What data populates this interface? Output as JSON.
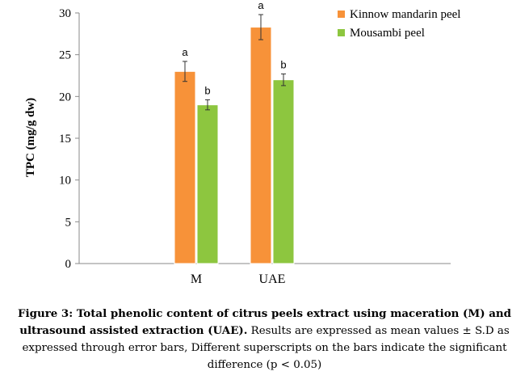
{
  "chart_data": {
    "type": "bar",
    "categories": [
      "M",
      "UAE"
    ],
    "ylabel": "TPC (mg/g dw)",
    "xlabel": "",
    "ylim": [
      0,
      30
    ],
    "yticks": [
      "0",
      "5",
      "10",
      "15",
      "20",
      "25",
      "30"
    ],
    "grid": false,
    "legend_position": "top-right",
    "series": [
      {
        "name": "Kinnow mandarin peel",
        "color": "#F79239",
        "values": [
          23.0,
          28.3
        ],
        "errors": [
          1.2,
          1.5
        ],
        "labels": [
          "a",
          "a"
        ]
      },
      {
        "name": "Mousambi peel",
        "color": "#8DC63F",
        "values": [
          19.0,
          22.0
        ],
        "errors": [
          0.6,
          0.7
        ],
        "labels": [
          "b",
          "b"
        ]
      }
    ]
  },
  "caption": {
    "bold": "Figure 3: Total phenolic content of citrus peels extract using maceration (M) and ultrasound assisted extraction (UAE).",
    "text": " Results are expressed as mean values ± S.D as expressed through error bars, Different superscripts on the bars indicate the significant difference (p < 0.05)"
  }
}
